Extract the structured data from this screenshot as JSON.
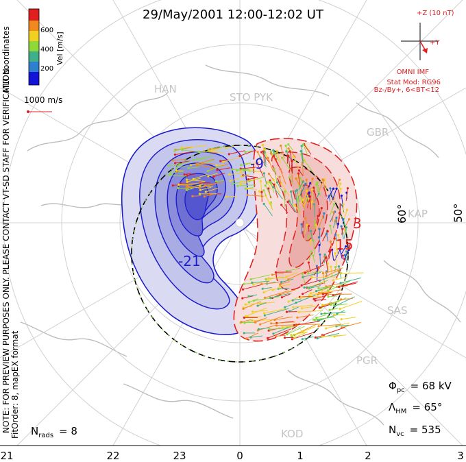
{
  "chart_data": {
    "type": "polar convection map",
    "title": "29/May/2001 12:00-12:02 UT",
    "coordinates": "MLT coordinates",
    "colorbar": {
      "label": "Vel [m/s]",
      "ticks": [
        200,
        400,
        600
      ],
      "colors": [
        "#1414d8",
        "#2f7fd0",
        "#3fb08a",
        "#8ed83a",
        "#f0d020",
        "#f08a20",
        "#e02020"
      ]
    },
    "reference_vector_label": "1000 m/s",
    "imf": {
      "scale_label": "+Z (10 nT)",
      "y_label": "+Y",
      "lines": [
        "OMNI IMF",
        "Stat Mod: RG96",
        "Bz-/By+, 6<BT<12"
      ]
    },
    "latitude_labels": [
      "60°",
      "50°"
    ],
    "mlt_labels": [
      "21",
      "22",
      "23",
      "0",
      "1",
      "2",
      "3"
    ],
    "stations": [
      "HAN",
      "STO PYK",
      "GBR",
      "KAP",
      "SAS",
      "PGR",
      "KOD"
    ],
    "contour_labels": [
      "-9",
      "-21",
      "3",
      "15"
    ],
    "notes": [
      "NOTE: FOR PREVIEW PURPOSES ONLY. PLEASE CONTACT VT-SD STAFF FOR VERIFICATION.",
      "FitOrder: 8, mapEX format"
    ],
    "stats": {
      "n_rads": "= 8",
      "phi_pc": "= 68 kV",
      "lambda_hm": "= 65°",
      "n_vc": "= 535"
    },
    "sub_labels": {
      "n": "N",
      "rads": "rads",
      "vc": "vc",
      "phi": "Φ",
      "pc": "pc",
      "lambda": "Λ",
      "hm": "HM"
    }
  }
}
